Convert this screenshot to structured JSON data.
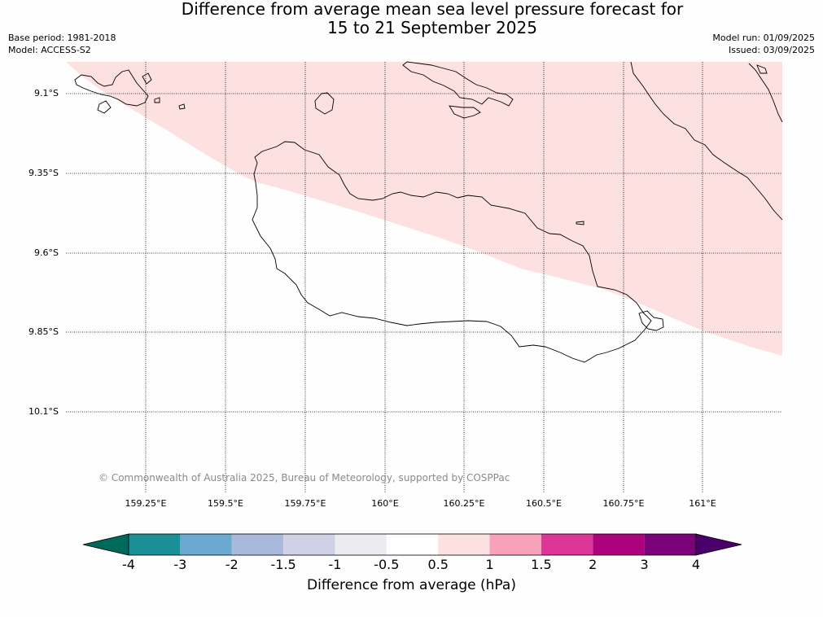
{
  "title": {
    "line1": "Difference from average mean sea level pressure forecast for",
    "line2": "15 to 21 September 2025"
  },
  "meta": {
    "base_period": "Base period: 1981-2018",
    "model": "Model: ACCESS-S2",
    "model_run": "Model run: 01/09/2025",
    "issued": "Issued: 03/09/2025"
  },
  "map": {
    "lat_labels": [
      "9.1°S",
      "9.35°S",
      "9.6°S",
      "9.85°S",
      "10.1°S"
    ],
    "lon_labels": [
      "159.25°E",
      "159.5°E",
      "159.75°E",
      "160°E",
      "160.25°E",
      "160.5°E",
      "160.75°E",
      "161°E"
    ],
    "anomaly_region_color": "#fde0e0",
    "copyright": "© Commonwealth of Australia 2025, Bureau of Meteorology, supported by COSPPac"
  },
  "colorbar": {
    "label": "Difference from average (hPa)",
    "ticks": [
      "-4",
      "-3",
      "-2",
      "-1.5",
      "-1",
      "-0.5",
      "0.5",
      "1",
      "1.5",
      "2",
      "3",
      "4"
    ],
    "colors": [
      "#1a9096",
      "#6aa9d0",
      "#a9b9db",
      "#d0d1e6",
      "#ececf0",
      "#ffffff",
      "#fde0e0",
      "#f7a1bb",
      "#dd3497",
      "#ae017e",
      "#7a0177"
    ],
    "under_color": "#006a5a",
    "over_color": "#49006a"
  }
}
